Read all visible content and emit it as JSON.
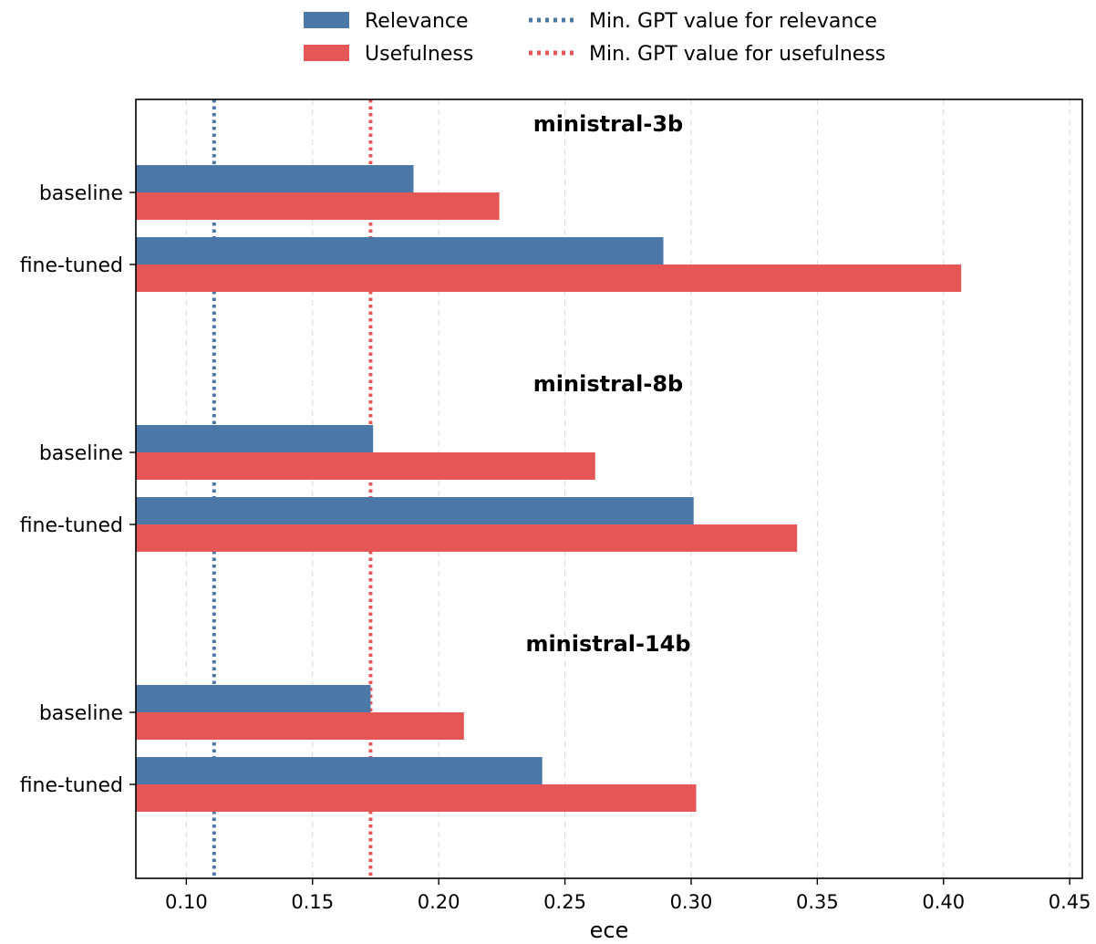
{
  "chart_data": {
    "type": "bar",
    "orientation": "horizontal",
    "xlabel": "ece",
    "xlim": [
      0.08,
      0.455
    ],
    "xticks": [
      "0.10",
      "0.15",
      "0.20",
      "0.25",
      "0.30",
      "0.35",
      "0.40",
      "0.45"
    ],
    "xtick_values": [
      0.1,
      0.15,
      0.2,
      0.25,
      0.3,
      0.35,
      0.4,
      0.45
    ],
    "grid": "vertical dashed",
    "legend_position": "top-center",
    "series": [
      {
        "name": "Relevance",
        "color": "#4c78a8"
      },
      {
        "name": "Usefulness",
        "color": "#e45756"
      }
    ],
    "reference_lines": [
      {
        "name": "Min. GPT value for relevance",
        "value": 0.111,
        "color": "#4c78a8",
        "style": "dotted"
      },
      {
        "name": "Min. GPT value for usefulness",
        "value": 0.173,
        "color": "#e45756",
        "style": "dotted"
      }
    ],
    "groups": [
      {
        "title": "ministral-3b",
        "rows": [
          {
            "label": "baseline",
            "relevance": 0.19,
            "usefulness": 0.224
          },
          {
            "label": "fine-tuned",
            "relevance": 0.289,
            "usefulness": 0.407
          }
        ]
      },
      {
        "title": "ministral-8b",
        "rows": [
          {
            "label": "baseline",
            "relevance": 0.174,
            "usefulness": 0.262
          },
          {
            "label": "fine-tuned",
            "relevance": 0.301,
            "usefulness": 0.342
          }
        ]
      },
      {
        "title": "ministral-14b",
        "rows": [
          {
            "label": "baseline",
            "relevance": 0.173,
            "usefulness": 0.21
          },
          {
            "label": "fine-tuned",
            "relevance": 0.241,
            "usefulness": 0.302
          }
        ]
      }
    ]
  }
}
